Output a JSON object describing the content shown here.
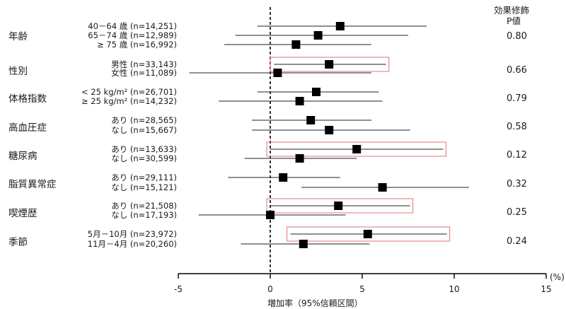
{
  "header": {
    "line1": "効果修飾",
    "line2": "P値"
  },
  "axis": {
    "label": "増加率（95%信頼区間）",
    "unit": "(%)"
  },
  "chart_data": {
    "type": "forest",
    "xlim": [
      -5,
      15
    ],
    "ticks": [
      "-5",
      "0",
      "5",
      "10",
      "15"
    ],
    "reference_line": 0,
    "groups": [
      {
        "label": "年齢",
        "p": "0.80",
        "rows": [
          {
            "label": "40－64 歳 (n=14,251)",
            "est": 3.8,
            "lo": -0.7,
            "hi": 8.5,
            "hl": false
          },
          {
            "label": "65－74 歳 (n=12,989)",
            "est": 2.6,
            "lo": -1.9,
            "hi": 7.5,
            "hl": false
          },
          {
            "label": "≥ 75 歳 (n=16,992)",
            "est": 1.4,
            "lo": -2.5,
            "hi": 5.5,
            "hl": false
          }
        ]
      },
      {
        "label": "性別",
        "p": "0.66",
        "rows": [
          {
            "label": "男性 (n=33,143)",
            "est": 3.2,
            "lo": 0.2,
            "hi": 6.3,
            "hl": true
          },
          {
            "label": "女性 (n=11,089)",
            "est": 0.4,
            "lo": -4.4,
            "hi": 5.5,
            "hl": false
          }
        ]
      },
      {
        "label": "体格指数",
        "p": "0.79",
        "rows": [
          {
            "label": "< 25 kg/m² (n=26,701)",
            "est": 2.5,
            "lo": -0.7,
            "hi": 5.9,
            "hl": false
          },
          {
            "label": "≥ 25 kg/m² (n=14,232)",
            "est": 1.6,
            "lo": -2.8,
            "hi": 6.1,
            "hl": false
          }
        ]
      },
      {
        "label": "高血圧症",
        "p": "0.58",
        "rows": [
          {
            "label": "あり (n=28,565)",
            "est": 2.2,
            "lo": -1.0,
            "hi": 5.5,
            "hl": false
          },
          {
            "label": "なし (n=15,667)",
            "est": 3.2,
            "lo": -1.0,
            "hi": 7.6,
            "hl": false
          }
        ]
      },
      {
        "label": "糖尿病",
        "p": "0.12",
        "rows": [
          {
            "label": "あり (n=13,633)",
            "est": 4.7,
            "lo": 0.0,
            "hi": 9.4,
            "hl": true
          },
          {
            "label": "なし (n=30,599)",
            "est": 1.6,
            "lo": -1.4,
            "hi": 4.7,
            "hl": false
          }
        ]
      },
      {
        "label": "脂質異常症",
        "p": "0.32",
        "rows": [
          {
            "label": "あり (n=29,111)",
            "est": 0.7,
            "lo": -2.3,
            "hi": 3.8,
            "hl": false
          },
          {
            "label": "なし (n=15,121)",
            "est": 6.1,
            "lo": 1.7,
            "hi": 10.8,
            "hl": false
          }
        ]
      },
      {
        "label": "喫煙歴",
        "p": "0.25",
        "rows": [
          {
            "label": "あり (n=21,508)",
            "est": 3.7,
            "lo": 0.0,
            "hi": 7.6,
            "hl": true
          },
          {
            "label": "なし (n=17,193)",
            "est": 0.0,
            "lo": -3.9,
            "hi": 4.1,
            "hl": false
          }
        ]
      },
      {
        "label": "季節",
        "p": "0.24",
        "rows": [
          {
            "label": "5月－10月 (n=23,972)",
            "est": 5.3,
            "lo": 1.1,
            "hi": 9.6,
            "hl": true
          },
          {
            "label": "11月－4月 (n=20,260)",
            "est": 1.8,
            "lo": -1.6,
            "hi": 5.4,
            "hl": false
          }
        ]
      }
    ]
  }
}
